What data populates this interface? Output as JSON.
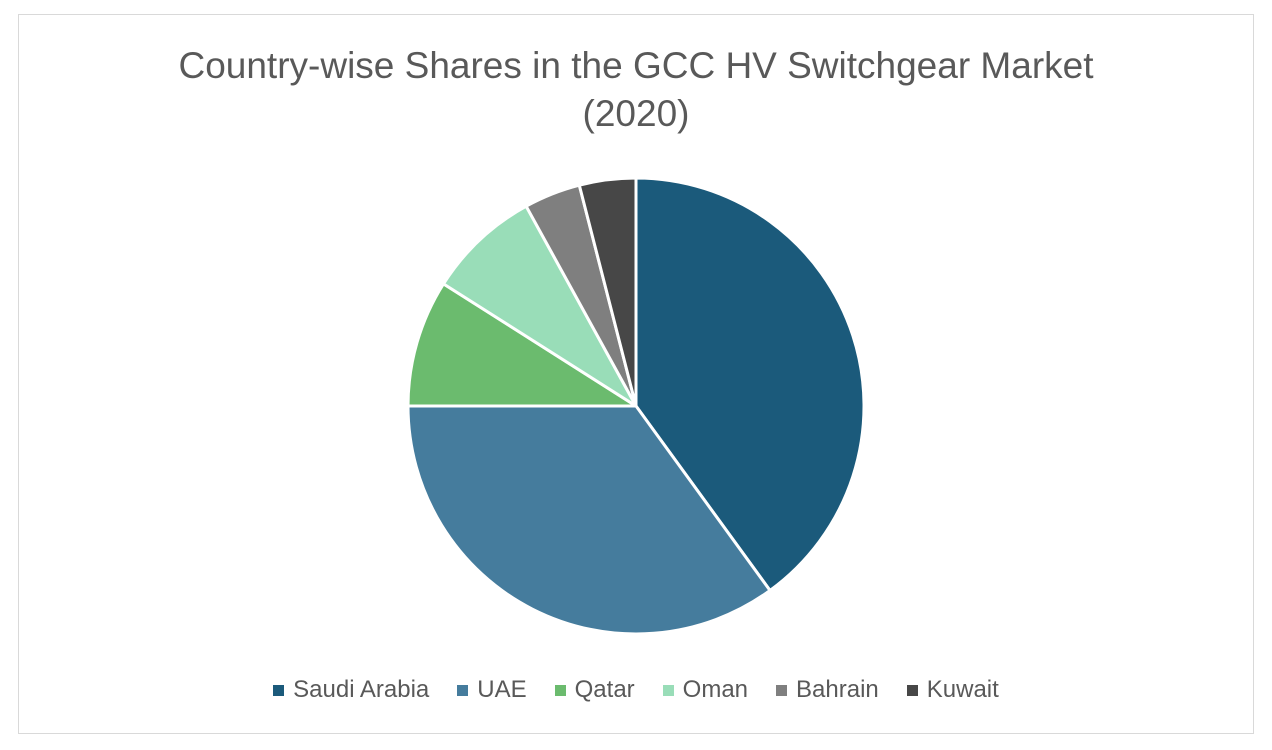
{
  "chart_data": {
    "type": "pie",
    "title": "Country-wise Shares in the GCC HV Switchgear Market",
    "subtitle": "(2020)",
    "legend_position": "bottom",
    "categories": [
      "Saudi Arabia",
      "UAE",
      "Qatar",
      "Oman",
      "Bahrain",
      "Kuwait"
    ],
    "values": [
      40,
      35,
      9,
      8,
      4,
      4
    ],
    "unit": "%",
    "colors": [
      "#1b5a7b",
      "#457c9d",
      "#6bbb6e",
      "#99ddb8",
      "#7f7f7f",
      "#474747"
    ],
    "slice_border_color": "#ffffff",
    "start_angle_deg": 0,
    "direction": "clockwise"
  }
}
